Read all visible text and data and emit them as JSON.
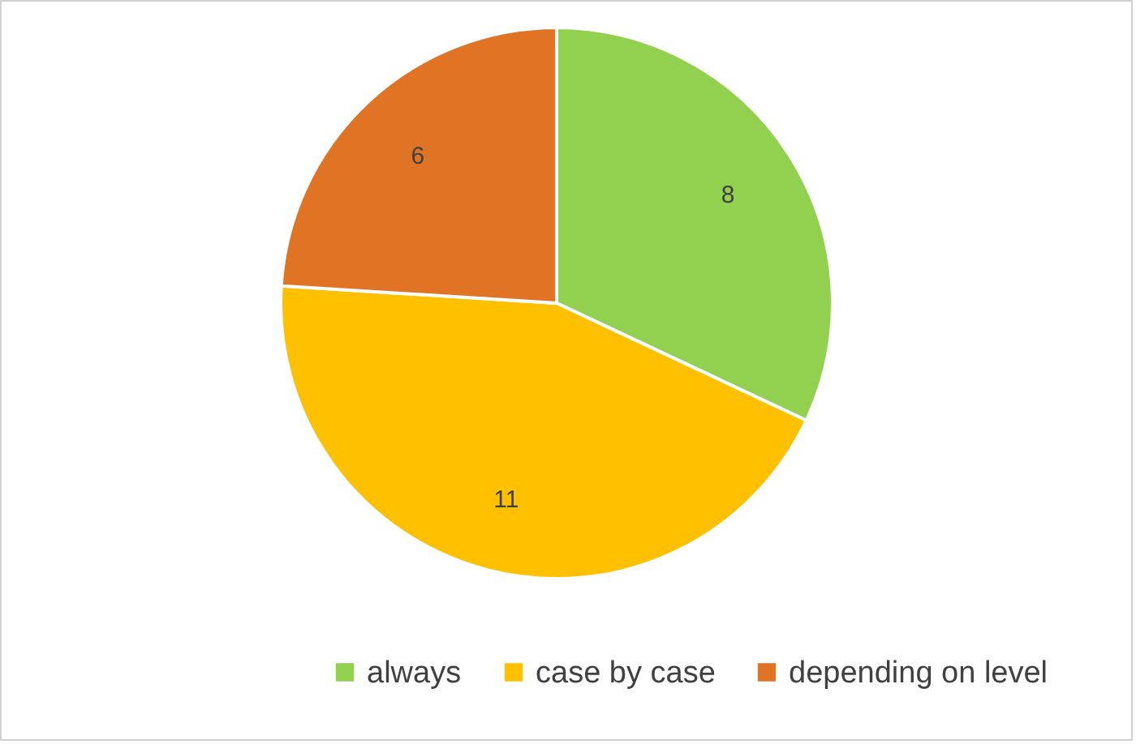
{
  "chart_data": {
    "type": "pie",
    "categories": [
      "always",
      "case by case",
      "depending on level"
    ],
    "values": [
      8,
      11,
      6
    ],
    "colors": [
      "#92d050",
      "#ffc000",
      "#e07324"
    ],
    "data_labels": true,
    "legend": "bottom"
  }
}
